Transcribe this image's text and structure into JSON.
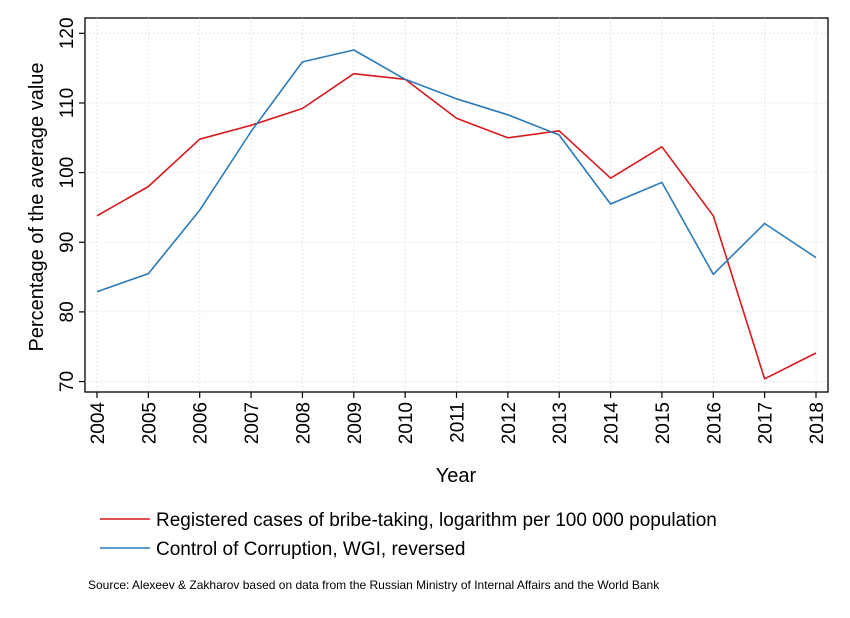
{
  "chart_data": {
    "type": "line",
    "title": "",
    "xlabel": "Year",
    "ylabel": "Percentage of the average value",
    "x": [
      2004,
      2005,
      2006,
      2007,
      2008,
      2009,
      2010,
      2011,
      2012,
      2013,
      2014,
      2015,
      2016,
      2017,
      2018
    ],
    "x_tick_labels": [
      "2004",
      "2005",
      "2006",
      "2007",
      "2008",
      "2009",
      "2010",
      "2011",
      "2012",
      "2013",
      "2014",
      "2015",
      "2016",
      "2017",
      "2018"
    ],
    "y_ticks": [
      70,
      80,
      90,
      100,
      110,
      120
    ],
    "y_tick_labels": [
      "70",
      "80",
      "90",
      "100",
      "110",
      "120"
    ],
    "ylim": [
      68.5,
      122.2
    ],
    "grid": true,
    "legend_position": "bottom",
    "series": [
      {
        "name": "Registered cases of bribe-taking, logarithm per 100 000 population",
        "color": "#d7191c",
        "values": [
          93.8,
          98.0,
          104.8,
          106.8,
          109.2,
          114.2,
          113.4,
          107.8,
          105.0,
          106.0,
          99.2,
          103.7,
          93.8,
          70.4,
          74.1
        ]
      },
      {
        "name": "Control of Corruption, WGI, reversed",
        "color": "#2b7bba",
        "values": [
          82.9,
          85.5,
          94.6,
          105.9,
          115.9,
          117.6,
          113.4,
          110.6,
          108.3,
          105.4,
          95.5,
          98.6,
          85.4,
          92.7,
          87.8
        ]
      }
    ],
    "source": "Source: Alexeev & Zakharov based on data from the Russian Ministry of Internal Affairs and the World Bank"
  }
}
